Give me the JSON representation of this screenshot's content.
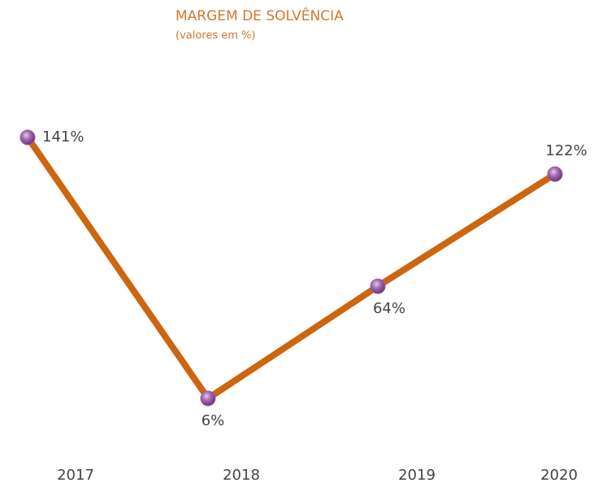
{
  "chart_data": {
    "type": "line",
    "title": "MARGEM DE SOLVÊNCIA",
    "subtitle": "(valores em %)",
    "categories": [
      "2017",
      "2018",
      "2019",
      "2020"
    ],
    "series": [
      {
        "color": "#cc660f",
        "marker_color": "#9a5ba6",
        "values": [
          141,
          6,
          64,
          122
        ],
        "value_labels": [
          "141%",
          "6%",
          "64%",
          "122%"
        ]
      }
    ]
  }
}
